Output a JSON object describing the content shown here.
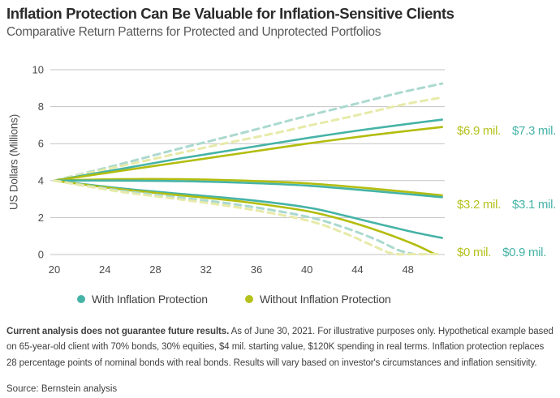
{
  "header": {
    "title": "Inflation Protection Can Be Valuable for Inflation-Sensitive Clients",
    "subtitle": "Comparative Return Patterns for Protected and Unprotected Portfolios"
  },
  "chart_data": {
    "type": "line",
    "title": "Comparative Return Patterns for Protected and Unprotected Portfolios",
    "xlabel": "",
    "ylabel": "US Dollars (Millions)",
    "x_ticks": [
      20,
      24,
      28,
      32,
      36,
      40,
      44,
      48
    ],
    "y_ticks": [
      0,
      2,
      4,
      6,
      8,
      10
    ],
    "xlim": [
      20,
      50.7
    ],
    "ylim": [
      0,
      10
    ],
    "grid": "horizontal",
    "colors": {
      "teal": "#45b3a6",
      "yellow": "#b3bd0e",
      "pale_teal": "#abd9cf",
      "pale_yellow": "#e7eaa9",
      "grid": "#c3c3c3"
    },
    "series": [
      {
        "name": "with-protection-upper-dashed",
        "color": "pale_teal",
        "dash": true,
        "points": [
          [
            20,
            4
          ],
          [
            22.5,
            4.42
          ],
          [
            25,
            4.85
          ],
          [
            27.5,
            5.3
          ],
          [
            30,
            5.75
          ],
          [
            32.5,
            6.17
          ],
          [
            35,
            6.6
          ],
          [
            37.5,
            7.05
          ],
          [
            40,
            7.5
          ],
          [
            42.5,
            7.92
          ],
          [
            45,
            8.35
          ],
          [
            47.5,
            8.78
          ],
          [
            50.7,
            9.25
          ]
        ]
      },
      {
        "name": "without-protection-upper-dashed",
        "color": "pale_yellow",
        "dash": true,
        "points": [
          [
            20,
            4
          ],
          [
            22.5,
            4.38
          ],
          [
            25,
            4.75
          ],
          [
            27.5,
            5.12
          ],
          [
            30,
            5.5
          ],
          [
            32.5,
            5.87
          ],
          [
            35,
            6.22
          ],
          [
            37.5,
            6.57
          ],
          [
            40,
            6.95
          ],
          [
            42.5,
            7.32
          ],
          [
            45,
            7.7
          ],
          [
            47.5,
            8.1
          ],
          [
            50.7,
            8.5
          ]
        ]
      },
      {
        "name": "with-protection-upper",
        "color": "teal",
        "dash": false,
        "points": [
          [
            20,
            4
          ],
          [
            25,
            4.6
          ],
          [
            30,
            5.2
          ],
          [
            35,
            5.75
          ],
          [
            40,
            6.3
          ],
          [
            45,
            6.8
          ],
          [
            50.7,
            7.3
          ]
        ]
      },
      {
        "name": "without-protection-upper",
        "color": "yellow",
        "dash": false,
        "points": [
          [
            20,
            4
          ],
          [
            25,
            4.5
          ],
          [
            30,
            5.0
          ],
          [
            35,
            5.5
          ],
          [
            40,
            6.0
          ],
          [
            45,
            6.45
          ],
          [
            50.7,
            6.9
          ]
        ]
      },
      {
        "name": "without-protection-middle",
        "color": "yellow",
        "dash": false,
        "points": [
          [
            20,
            4
          ],
          [
            25,
            4.08
          ],
          [
            30,
            4.08
          ],
          [
            35,
            4.0
          ],
          [
            40,
            3.85
          ],
          [
            45,
            3.58
          ],
          [
            50.7,
            3.2
          ]
        ]
      },
      {
        "name": "with-protection-middle",
        "color": "teal",
        "dash": false,
        "points": [
          [
            20,
            4
          ],
          [
            25,
            4.0
          ],
          [
            30,
            3.97
          ],
          [
            35,
            3.88
          ],
          [
            40,
            3.73
          ],
          [
            45,
            3.45
          ],
          [
            50.7,
            3.1
          ]
        ]
      },
      {
        "name": "with-protection-lower",
        "color": "teal",
        "dash": false,
        "points": [
          [
            20,
            4
          ],
          [
            25,
            3.6
          ],
          [
            30,
            3.28
          ],
          [
            35,
            2.98
          ],
          [
            40,
            2.55
          ],
          [
            43,
            2.1
          ],
          [
            46,
            1.6
          ],
          [
            48.5,
            1.2
          ],
          [
            50.7,
            0.9
          ]
        ]
      },
      {
        "name": "without-protection-lower",
        "color": "yellow",
        "dash": false,
        "points": [
          [
            20,
            4
          ],
          [
            25,
            3.55
          ],
          [
            30,
            3.2
          ],
          [
            35,
            2.85
          ],
          [
            40,
            2.35
          ],
          [
            43,
            1.85
          ],
          [
            46,
            1.2
          ],
          [
            48.5,
            0.55
          ],
          [
            50.1,
            0.03
          ]
        ]
      },
      {
        "name": "with-protection-lower-dashed",
        "color": "pale_teal",
        "dash": true,
        "points": [
          [
            20,
            4
          ],
          [
            25,
            3.48
          ],
          [
            30,
            3.08
          ],
          [
            35,
            2.65
          ],
          [
            40,
            2.05
          ],
          [
            43,
            1.45
          ],
          [
            45.5,
            0.8
          ],
          [
            47.2,
            0.25
          ],
          [
            48.4,
            0.03
          ]
        ]
      },
      {
        "name": "without-protection-lower-dashed",
        "color": "pale_yellow",
        "dash": true,
        "points": [
          [
            20,
            4
          ],
          [
            25,
            3.42
          ],
          [
            30,
            2.98
          ],
          [
            35,
            2.5
          ],
          [
            40,
            1.85
          ],
          [
            43,
            1.15
          ],
          [
            45.3,
            0.45
          ],
          [
            46.8,
            0.05
          ],
          [
            48.5,
            0.02
          ],
          [
            50.5,
            0.02
          ]
        ]
      }
    ],
    "value_labels": [
      {
        "items": [
          {
            "text": "$6.9 mil.",
            "series": "without-protection-upper"
          },
          {
            "text": "$7.3 mil.",
            "series": "with-protection-upper"
          }
        ]
      },
      {
        "items": [
          {
            "text": "$3.2 mil.",
            "series": "without-protection-middle"
          },
          {
            "text": "$3.1 mil.",
            "series": "with-protection-middle"
          }
        ]
      },
      {
        "items": [
          {
            "text": "$0 mil.",
            "series": "without-protection-lower"
          },
          {
            "text": "$0.9 mil.",
            "series": "with-protection-lower"
          }
        ]
      }
    ],
    "legend": [
      {
        "label": "With Inflation Protection",
        "color": "teal"
      },
      {
        "label": "Without Inflation Protection",
        "color": "yellow"
      }
    ]
  },
  "footnote": {
    "bold": "Current analysis does not guarantee future results.",
    "rest": " As of June 30, 2021. For illustrative purposes only. Hypothetical example based on 65-year-old client with 70% bonds, 30% equities, $4 mil. starting value, $120K spending in real terms. Inflation protection replaces 28 percentage points of nominal bonds with real bonds. Results will vary based on investor's circumstances and inflation sensitivity.",
    "source": "Source: Bernstein analysis"
  }
}
